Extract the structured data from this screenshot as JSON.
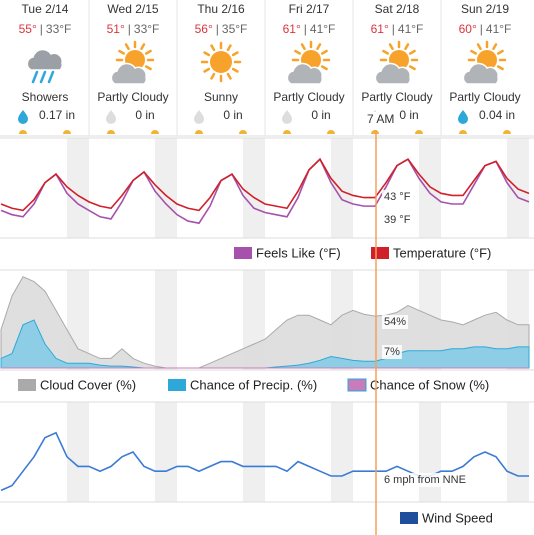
{
  "days": [
    {
      "label": "Tue 2/14",
      "high": "55°",
      "low": "33°F",
      "condition": "Showers",
      "precip": "0.17 in"
    },
    {
      "label": "Wed 2/15",
      "high": "51°",
      "low": "33°F",
      "condition": "Partly Cloudy",
      "precip": "0 in"
    },
    {
      "label": "Thu 2/16",
      "high": "56°",
      "low": "35°F",
      "condition": "Sunny",
      "precip": "0 in"
    },
    {
      "label": "Fri 2/17",
      "high": "61°",
      "low": "41°F",
      "condition": "Partly Cloudy",
      "precip": "0 in"
    },
    {
      "label": "Sat 2/18",
      "high": "61°",
      "low": "41°F",
      "condition": "Partly Cloudy",
      "precip": "0 in"
    },
    {
      "label": "Sun 2/19",
      "high": "60°",
      "low": "41°F",
      "condition": "Partly Cloudy",
      "precip": "0.04 in"
    }
  ],
  "separator": "|",
  "now_label": "7 AM",
  "chart_data": [
    {
      "type": "line",
      "ylim": [
        25,
        70
      ],
      "series": [
        {
          "name": "Feels Like (°F)",
          "color": "#a652ad",
          "values": [
            37,
            35,
            34,
            40,
            50,
            54,
            45,
            40,
            37,
            34,
            33,
            41,
            51,
            55,
            46,
            40,
            35,
            32,
            31,
            39,
            51,
            54,
            44,
            38,
            36,
            35,
            34,
            43,
            56,
            61,
            50,
            42,
            40,
            39,
            39,
            48,
            58,
            61,
            52,
            45,
            41,
            40,
            40,
            49,
            58,
            60,
            50,
            43,
            41
          ]
        },
        {
          "name": "Temperature (°F)",
          "color": "#d0202a",
          "values": [
            40,
            38,
            37,
            42,
            50,
            54,
            48,
            44,
            41,
            39,
            38,
            44,
            51,
            55,
            49,
            44,
            40,
            38,
            37,
            43,
            51,
            54,
            47,
            43,
            40,
            39,
            38,
            46,
            56,
            61,
            52,
            46,
            44,
            43,
            43,
            50,
            58,
            61,
            54,
            48,
            45,
            44,
            44,
            51,
            58,
            60,
            52,
            47,
            45
          ]
        }
      ],
      "annotations": [
        {
          "text": "43 °F",
          "color": "#d0202a"
        },
        {
          "text": "39 °F",
          "color": "#a652ad"
        }
      ]
    },
    {
      "type": "area",
      "ylim": [
        0,
        100
      ],
      "series": [
        {
          "name": "Cloud Cover (%)",
          "color": "#aaaaaa",
          "values": [
            40,
            75,
            95,
            90,
            80,
            60,
            40,
            20,
            15,
            10,
            10,
            20,
            10,
            5,
            2,
            0,
            0,
            0,
            0,
            5,
            10,
            15,
            20,
            25,
            30,
            40,
            50,
            55,
            55,
            50,
            45,
            55,
            60,
            56,
            54,
            55,
            58,
            65,
            60,
            55,
            50,
            48,
            45,
            50,
            55,
            58,
            50,
            45,
            45
          ]
        },
        {
          "name": "Chance of Precip. (%)",
          "color": "#2ea8d8",
          "values": [
            10,
            15,
            45,
            50,
            25,
            10,
            5,
            5,
            5,
            3,
            2,
            2,
            1,
            0,
            0,
            0,
            0,
            0,
            0,
            0,
            0,
            0,
            0,
            0,
            0,
            1,
            2,
            3,
            5,
            8,
            12,
            10,
            8,
            7,
            7,
            10,
            15,
            18,
            18,
            18,
            18,
            20,
            20,
            22,
            22,
            20,
            20,
            22,
            22
          ]
        },
        {
          "name": "Chance of Snow (%)",
          "color": "#c77dbb",
          "values": [
            0,
            0,
            0,
            0,
            0,
            0,
            0,
            0,
            0,
            0,
            0,
            0,
            0,
            0,
            0,
            0,
            0,
            0,
            0,
            0,
            0,
            0,
            0,
            0,
            0,
            0,
            0,
            0,
            0,
            0,
            0,
            0,
            0,
            0,
            0,
            0,
            0,
            0,
            0,
            0,
            0,
            0,
            0,
            0,
            0,
            0,
            0,
            0,
            0
          ]
        }
      ],
      "annotations": [
        {
          "text": "54%",
          "color": "#888888"
        },
        {
          "text": "7%",
          "color": "#2ea8d8"
        }
      ]
    },
    {
      "type": "line",
      "ylim": [
        0,
        20
      ],
      "series": [
        {
          "name": "Wind Speed",
          "color": "#3a7bd5",
          "values": [
            2,
            3,
            6,
            9,
            13,
            14,
            9,
            7,
            7,
            6,
            7,
            9,
            10,
            7,
            6,
            6,
            7,
            7,
            6,
            7,
            8,
            8,
            7,
            7,
            7,
            7,
            6,
            8,
            7,
            6,
            5,
            5,
            6,
            6,
            6,
            6,
            7,
            6,
            5,
            5,
            6,
            6,
            7,
            9,
            10,
            9,
            6,
            5,
            5
          ]
        }
      ],
      "annotations": [
        {
          "text": "6 mph from NNE",
          "color": "#2a64b8"
        }
      ]
    }
  ]
}
